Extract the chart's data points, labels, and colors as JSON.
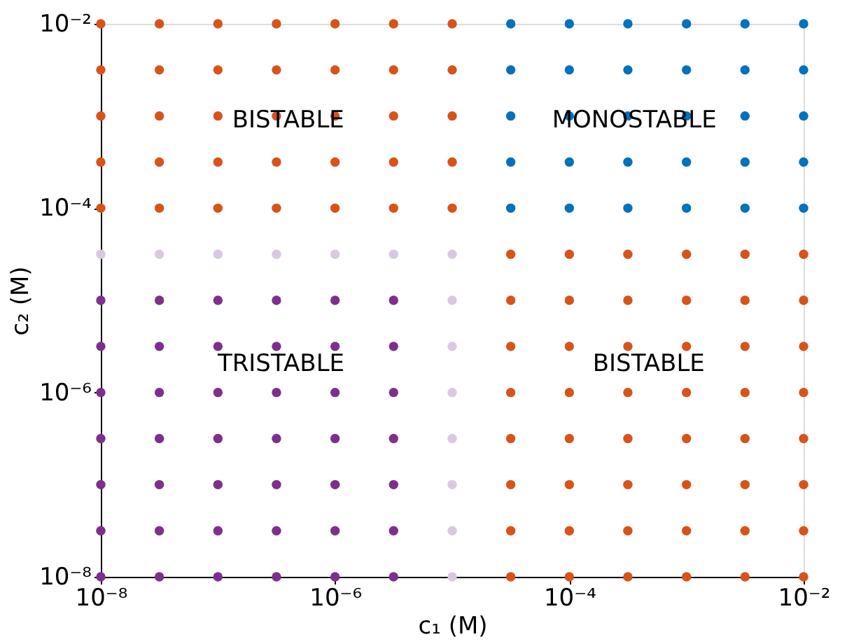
{
  "chart_data": {
    "type": "scatter",
    "xlabel": "c₁ (M)",
    "ylabel": "c₂ (M)",
    "log": "xy",
    "grid": false,
    "marker": "circle",
    "xlim": [
      1e-08,
      0.01
    ],
    "ylim": [
      1e-08,
      0.01
    ],
    "xticks": [
      {
        "value": 1e-08,
        "label": "10⁻⁸"
      },
      {
        "value": 1e-06,
        "label": "10⁻⁶"
      },
      {
        "value": 0.0001,
        "label": "10⁻⁴"
      },
      {
        "value": 0.01,
        "label": "10⁻²"
      }
    ],
    "yticks": [
      {
        "value": 1e-08,
        "label": "10⁻⁸"
      },
      {
        "value": 1e-06,
        "label": "10⁻⁶"
      },
      {
        "value": 0.0001,
        "label": "10⁻⁴"
      },
      {
        "value": 0.01,
        "label": "10⁻²"
      }
    ],
    "series": [
      {
        "color": "#7e2f8e",
        "x": [
          1e-08,
          3.16e-08,
          1e-07,
          3.16e-07,
          1e-06,
          3.16e-06,
          1e-08,
          3.16e-08,
          1e-07,
          3.16e-07,
          1e-06,
          3.16e-06,
          1e-08,
          3.16e-08,
          1e-07,
          3.16e-07,
          1e-06,
          3.16e-06,
          1e-08,
          3.16e-08,
          1e-07,
          3.16e-07,
          1e-06,
          3.16e-06,
          1e-08,
          3.16e-08,
          1e-07,
          3.16e-07,
          1e-06,
          3.16e-06,
          1e-08,
          3.16e-08,
          1e-07,
          3.16e-07,
          1e-06,
          3.16e-06,
          1e-08,
          3.16e-08,
          1e-07,
          3.16e-07,
          1e-06,
          3.16e-06
        ],
        "values": [
          1e-08,
          1e-08,
          1e-08,
          1e-08,
          1e-08,
          1e-08,
          3.16e-08,
          3.16e-08,
          3.16e-08,
          3.16e-08,
          3.16e-08,
          3.16e-08,
          1e-07,
          1e-07,
          1e-07,
          1e-07,
          1e-07,
          1e-07,
          3.16e-07,
          3.16e-07,
          3.16e-07,
          3.16e-07,
          3.16e-07,
          3.16e-07,
          1e-06,
          1e-06,
          1e-06,
          1e-06,
          1e-06,
          1e-06,
          3.16e-06,
          3.16e-06,
          3.16e-06,
          3.16e-06,
          3.16e-06,
          3.16e-06,
          1e-05,
          1e-05,
          1e-05,
          1e-05,
          1e-05,
          1e-05
        ]
      },
      {
        "color": "#d9c9de",
        "x": [
          1e-05,
          1e-05,
          1e-05,
          1e-05,
          1e-05,
          1e-05,
          1e-05,
          1e-05,
          1e-08,
          3.16e-08,
          1e-07,
          3.16e-07,
          1e-06,
          3.16e-06
        ],
        "values": [
          1e-08,
          3.16e-08,
          1e-07,
          3.16e-07,
          1e-06,
          3.16e-06,
          1e-05,
          3.16e-05,
          3.16e-05,
          3.16e-05,
          3.16e-05,
          3.16e-05,
          3.16e-05,
          3.16e-05
        ]
      },
      {
        "color": "#d95319",
        "x": [
          1e-08,
          3.16e-08,
          1e-07,
          3.16e-07,
          1e-06,
          3.16e-06,
          1e-05,
          1e-08,
          3.16e-08,
          1e-07,
          3.16e-07,
          1e-06,
          3.16e-06,
          1e-05,
          1e-08,
          3.16e-08,
          1e-07,
          3.16e-07,
          1e-06,
          3.16e-06,
          1e-05,
          1e-08,
          3.16e-08,
          1e-07,
          3.16e-07,
          1e-06,
          3.16e-06,
          1e-05,
          1e-08,
          3.16e-08,
          1e-07,
          3.16e-07,
          1e-06,
          3.16e-06,
          1e-05,
          3.16e-05,
          0.0001,
          0.000316,
          0.001,
          0.00316,
          0.01,
          3.16e-05,
          0.0001,
          0.000316,
          0.001,
          0.00316,
          0.01,
          3.16e-05,
          0.0001,
          0.000316,
          0.001,
          0.00316,
          0.01,
          3.16e-05,
          0.0001,
          0.000316,
          0.001,
          0.00316,
          0.01,
          3.16e-05,
          0.0001,
          0.000316,
          0.001,
          0.00316,
          0.01,
          3.16e-05,
          0.0001,
          0.000316,
          0.001,
          0.00316,
          0.01,
          3.16e-05,
          0.0001,
          0.000316,
          0.001,
          0.00316,
          0.01,
          3.16e-05,
          0.0001,
          0.000316,
          0.001,
          0.00316,
          0.01
        ],
        "values": [
          0.0001,
          0.0001,
          0.0001,
          0.0001,
          0.0001,
          0.0001,
          0.0001,
          0.000316,
          0.000316,
          0.000316,
          0.000316,
          0.000316,
          0.000316,
          0.000316,
          0.001,
          0.001,
          0.001,
          0.001,
          0.001,
          0.001,
          0.001,
          0.00316,
          0.00316,
          0.00316,
          0.00316,
          0.00316,
          0.00316,
          0.00316,
          0.01,
          0.01,
          0.01,
          0.01,
          0.01,
          0.01,
          0.01,
          1e-08,
          1e-08,
          1e-08,
          1e-08,
          1e-08,
          1e-08,
          3.16e-08,
          3.16e-08,
          3.16e-08,
          3.16e-08,
          3.16e-08,
          3.16e-08,
          1e-07,
          1e-07,
          1e-07,
          1e-07,
          1e-07,
          1e-07,
          3.16e-07,
          3.16e-07,
          3.16e-07,
          3.16e-07,
          3.16e-07,
          3.16e-07,
          1e-06,
          1e-06,
          1e-06,
          1e-06,
          1e-06,
          1e-06,
          3.16e-06,
          3.16e-06,
          3.16e-06,
          3.16e-06,
          3.16e-06,
          3.16e-06,
          1e-05,
          1e-05,
          1e-05,
          1e-05,
          1e-05,
          1e-05,
          3.16e-05,
          3.16e-05,
          3.16e-05,
          3.16e-05,
          3.16e-05,
          3.16e-05
        ]
      },
      {
        "color": "#0072bd",
        "x": [
          3.16e-05,
          0.0001,
          0.000316,
          0.001,
          0.00316,
          0.01,
          3.16e-05,
          0.0001,
          0.000316,
          0.001,
          0.00316,
          0.01,
          3.16e-05,
          0.0001,
          0.000316,
          0.001,
          0.00316,
          0.01,
          3.16e-05,
          0.0001,
          0.000316,
          0.001,
          0.00316,
          0.01,
          3.16e-05,
          0.0001,
          0.000316,
          0.001,
          0.00316,
          0.01
        ],
        "values": [
          0.0001,
          0.0001,
          0.0001,
          0.0001,
          0.0001,
          0.0001,
          0.000316,
          0.000316,
          0.000316,
          0.000316,
          0.000316,
          0.000316,
          0.001,
          0.001,
          0.001,
          0.001,
          0.001,
          0.001,
          0.00316,
          0.00316,
          0.00316,
          0.00316,
          0.00316,
          0.00316,
          0.01,
          0.01,
          0.01,
          0.01,
          0.01,
          0.01
        ]
      }
    ],
    "annotations": [
      "BISTABLE",
      "MONOSTABLE",
      "TRISTABLE",
      "BISTABLE"
    ]
  }
}
